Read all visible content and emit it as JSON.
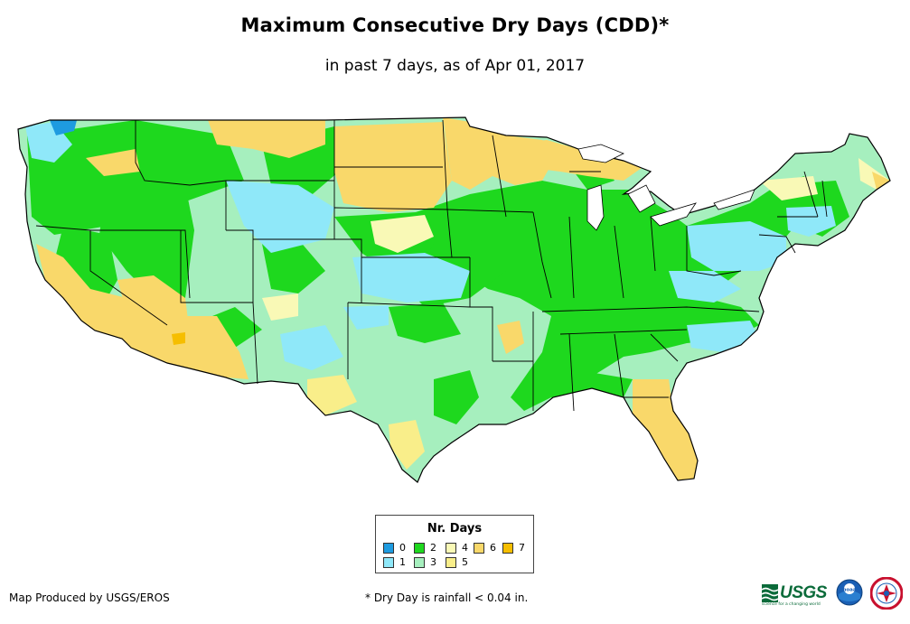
{
  "header": {
    "title": "Maximum Consecutive Dry Days (CDD)*",
    "subtitle": "in past 7 days, as of Apr 01, 2017"
  },
  "legend": {
    "title": "Nr. Days",
    "items": [
      {
        "label": "0",
        "color": "#1e9be0"
      },
      {
        "label": "1",
        "color": "#8fe8f9"
      },
      {
        "label": "2",
        "color": "#1ed81e"
      },
      {
        "label": "3",
        "color": "#a6efbe"
      },
      {
        "label": "4",
        "color": "#f9f9b6"
      },
      {
        "label": "5",
        "color": "#f9ee8a"
      },
      {
        "label": "6",
        "color": "#f9d86a"
      },
      {
        "label": "7",
        "color": "#f6be00"
      }
    ]
  },
  "footer": {
    "credit": "Map Produced by USGS/EROS",
    "note": "* Dry Day is rainfall < 0.04 in."
  },
  "logos": {
    "usgs_text": "USGS",
    "usgs_tagline": "science for a changing world",
    "noaa_text": "noaa"
  },
  "map": {
    "region": "Contiguous United States",
    "outline_color": "#000000",
    "dominant_class_color": "#1ed81e"
  }
}
